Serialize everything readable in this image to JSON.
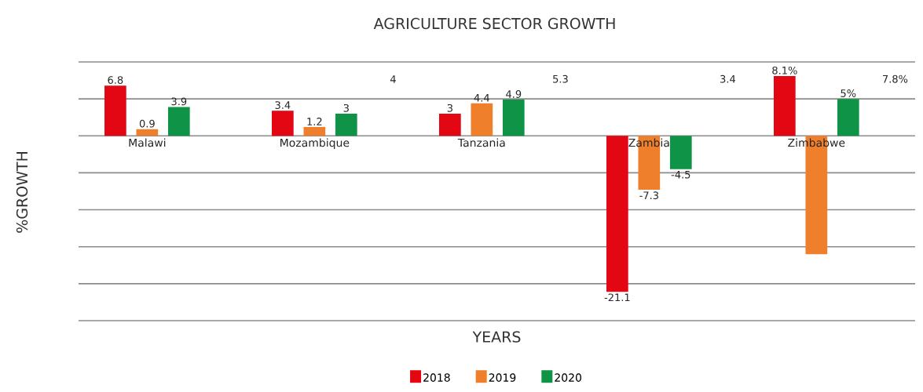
{
  "chart_data": {
    "type": "bar",
    "title": "AGRICULTURE SECTOR GROWTH",
    "xlabel": "YEARS",
    "ylabel": "%GROWTH",
    "categories": [
      "Malawi",
      "Mozambique",
      "Tanzania",
      "Zambia",
      "Zimbabwe"
    ],
    "series": [
      {
        "name": "2018",
        "color": "#e30613",
        "values": [
          6.8,
          3.4,
          3,
          -21.1,
          8.1
        ],
        "value_labels": [
          "6.8",
          "3.4",
          "3",
          "-21.1",
          "8.1%"
        ]
      },
      {
        "name": "2019",
        "color": "#f07f2c",
        "values": [
          0.9,
          1.2,
          4.4,
          -7.3,
          -16
        ],
        "value_labels": [
          "0.9",
          "1.2",
          "4.4",
          "-7.3",
          null
        ]
      },
      {
        "name": "2020",
        "color": "#0f9447",
        "values": [
          3.9,
          3,
          4.9,
          -4.5,
          5
        ],
        "value_labels": [
          "3.9",
          "3",
          "4.9",
          "-4.5",
          "5%"
        ]
      }
    ],
    "ylim": [
      -25,
      10
    ],
    "yticks": [
      {
        "value": -25,
        "label": null
      },
      {
        "value": -20,
        "label": null
      },
      {
        "value": -15,
        "label": null
      },
      {
        "value": -10,
        "label": null
      },
      {
        "value": -5,
        "label": null
      },
      {
        "value": 0,
        "label": null
      },
      {
        "value": 5,
        "label": null
      },
      {
        "value": 10,
        "label": null
      }
    ],
    "tick_labels": "x",
    "grid": "y",
    "legend": "bottom",
    "annotations": [
      "4",
      "5.3",
      "3.4",
      "7.8%"
    ]
  }
}
